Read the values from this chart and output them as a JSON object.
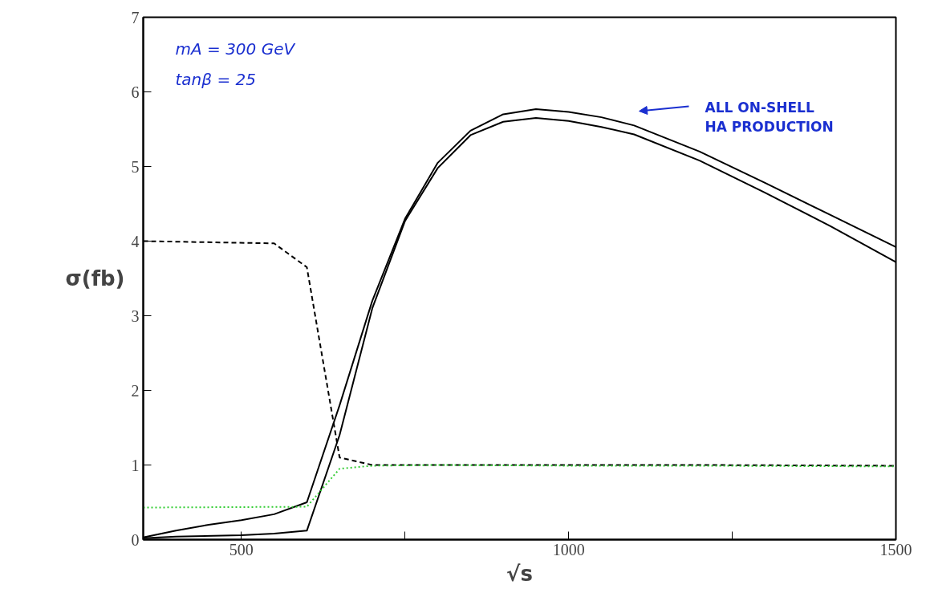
{
  "chart_data": {
    "type": "line",
    "xlabel": "√s",
    "ylabel": "σ(fb)",
    "xlim": [
      350,
      1500
    ],
    "ylim": [
      0,
      7
    ],
    "xticks": [
      500,
      {
        "value": 750,
        "label": null
      },
      1000,
      {
        "value": 1250,
        "label": null
      },
      1500
    ],
    "yticks": [
      0,
      1,
      2,
      3,
      4,
      5,
      6,
      7
    ],
    "grid": false,
    "series": [
      {
        "color": "#000000",
        "line_style": "solid",
        "x": [
          350,
          400,
          450,
          500,
          550,
          600,
          650,
          700,
          750,
          800,
          850,
          900,
          950,
          1000,
          1050,
          1100,
          1200,
          1300,
          1400,
          1500
        ],
        "values": [
          0.03,
          0.12,
          0.2,
          0.26,
          0.34,
          0.5,
          1.8,
          3.2,
          4.3,
          5.05,
          5.48,
          5.7,
          5.77,
          5.73,
          5.66,
          5.55,
          5.2,
          4.78,
          4.35,
          3.92
        ]
      },
      {
        "color": "#000000",
        "line_style": "solid",
        "x": [
          350,
          400,
          500,
          550,
          600,
          650,
          700,
          750,
          800,
          850,
          900,
          950,
          1000,
          1050,
          1100,
          1200,
          1300,
          1400,
          1500
        ],
        "values": [
          0.02,
          0.04,
          0.06,
          0.08,
          0.12,
          1.4,
          3.1,
          4.27,
          4.98,
          5.42,
          5.6,
          5.65,
          5.61,
          5.53,
          5.43,
          5.08,
          4.65,
          4.2,
          3.72
        ]
      },
      {
        "color": "#000000",
        "line_style": "dashed",
        "x": [
          350,
          550,
          600,
          650,
          700,
          800,
          1000,
          1200,
          1500
        ],
        "values": [
          4.0,
          3.97,
          3.65,
          1.1,
          1.0,
          1.0,
          1.0,
          1.0,
          0.99
        ]
      },
      {
        "color": "#33cc33",
        "line_style": "dotted",
        "x": [
          350,
          600,
          650,
          700,
          800,
          1000,
          1200,
          1500
        ],
        "values": [
          0.43,
          0.44,
          0.95,
          0.99,
          1.0,
          0.99,
          0.99,
          0.98
        ]
      }
    ],
    "annotations": [
      "mA = 300 GeV",
      "tanβ = 25",
      "ALL ON-SHELL\nHA PRODUCTION"
    ]
  }
}
